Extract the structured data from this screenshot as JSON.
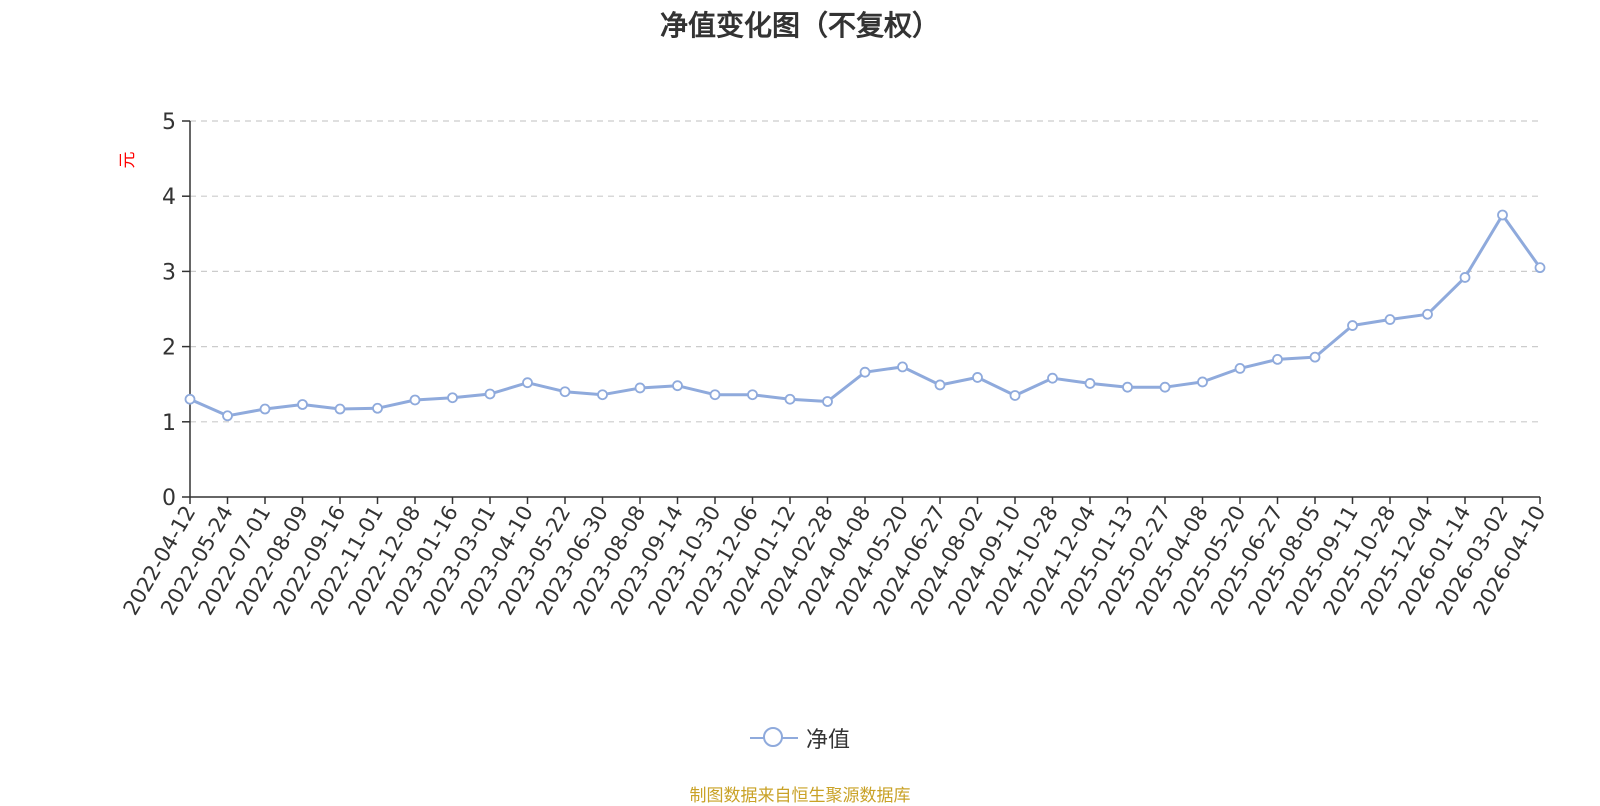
{
  "chart_data": {
    "type": "line",
    "title": "净值变化图（不复权）",
    "ylabel": "元",
    "ylim": [
      0,
      5
    ],
    "yticks": [
      0,
      1,
      2,
      3,
      4,
      5
    ],
    "grid": true,
    "legend_position": "bottom",
    "x_tick_labels": [
      "2022-04-12",
      "2022-05-24",
      "2022-07-01",
      "2022-08-09",
      "2022-09-16",
      "2022-11-01",
      "2022-12-08",
      "2023-01-16",
      "2023-03-01",
      "2023-04-10",
      "2023-05-22",
      "2023-06-30",
      "2023-08-08",
      "2023-09-14",
      "2023-10-30",
      "2023-12-06",
      "2024-01-12",
      "2024-02-28",
      "2024-04-08",
      "2024-05-20",
      "2024-06-27",
      "2024-08-02",
      "2024-09-10",
      "2024-10-28",
      "2024-12-04",
      "2025-01-13",
      "2025-02-27",
      "2025-04-08",
      "2025-05-20",
      "2025-06-27",
      "2025-08-05",
      "2025-09-11",
      "2025-10-28",
      "2025-12-04",
      "2026-01-14",
      "2026-03-02",
      "2026-04-10"
    ],
    "series": [
      {
        "name": "净值",
        "color": "#8faadc",
        "x": [
          "2022-04-12",
          "2022-05-24",
          "2022-07-01",
          "2022-08-09",
          "2022-09-16",
          "2022-11-01",
          "2022-12-08",
          "2023-01-16",
          "2023-03-01",
          "2023-04-10",
          "2023-05-22",
          "2023-06-30",
          "2023-08-08",
          "2023-09-14",
          "2023-10-30",
          "2023-12-06",
          "2024-01-12",
          "2024-02-28",
          "2024-04-08",
          "2024-05-20",
          "2024-06-27",
          "2024-08-02",
          "2024-09-10",
          "2024-10-28",
          "2024-12-04",
          "2025-01-13",
          "2025-02-27",
          "2025-04-08",
          "2025-05-20",
          "2025-06-27",
          "2025-08-05",
          "2025-09-11",
          "2025-10-28",
          "2025-12-04",
          "2026-01-14",
          "2026-03-02",
          "2026-04-10"
        ],
        "values": [
          1.3,
          1.08,
          1.17,
          1.23,
          1.17,
          1.18,
          1.29,
          1.32,
          1.37,
          1.52,
          1.4,
          1.36,
          1.45,
          1.48,
          1.36,
          1.36,
          1.3,
          1.27,
          1.66,
          1.73,
          1.49,
          1.59,
          1.35,
          1.58,
          1.51,
          1.46,
          1.46,
          1.53,
          1.71,
          1.83,
          1.86,
          2.28,
          2.36,
          2.43,
          2.92,
          3.75,
          3.05
        ]
      }
    ]
  },
  "legend": {
    "label": "净值"
  },
  "source": "制图数据来自恒生聚源数据库"
}
